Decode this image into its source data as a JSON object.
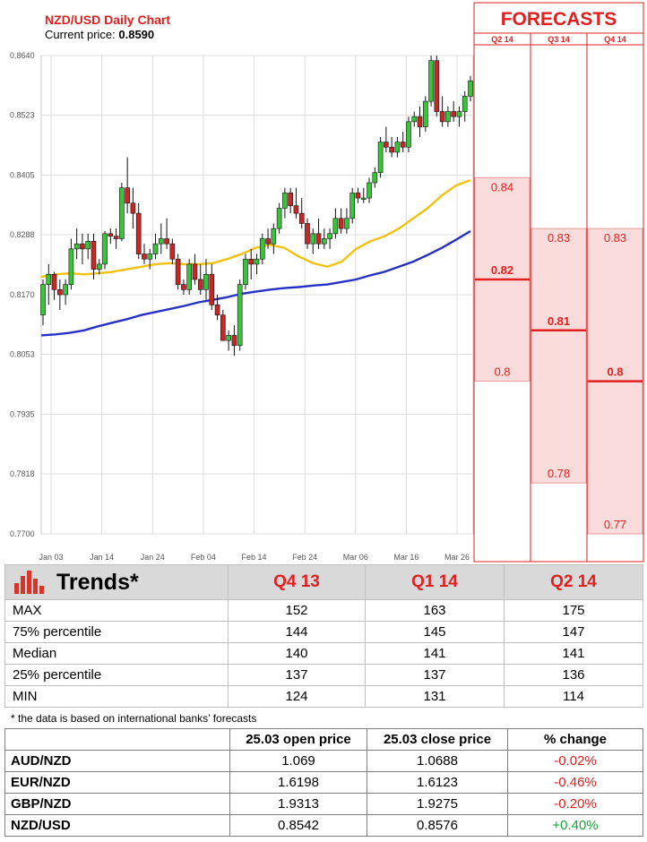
{
  "chart_data": {
    "type": "candlestick",
    "title": "NZD/USD Daily Chart",
    "subtitle_label": "Current price: ",
    "current_price": "0.8590",
    "y_ticks": [
      "0.8640",
      "0.8523",
      "0.8405",
      "0.8288",
      "0.8170",
      "0.8053",
      "0.7935",
      "0.7818",
      "0.7700"
    ],
    "ylim": [
      0.77,
      0.864
    ],
    "x_ticks": [
      "Jan 03",
      "Jan 14",
      "Jan 24",
      "Feb 04",
      "Feb 14",
      "Feb 24",
      "Mar 06",
      "Mar 16",
      "Mar 26"
    ],
    "candles": [
      [
        0.813,
        0.82,
        0.811,
        0.819
      ],
      [
        0.819,
        0.823,
        0.815,
        0.821
      ],
      [
        0.821,
        0.8215,
        0.816,
        0.818
      ],
      [
        0.818,
        0.82,
        0.814,
        0.817
      ],
      [
        0.817,
        0.82,
        0.815,
        0.819
      ],
      [
        0.819,
        0.828,
        0.818,
        0.826
      ],
      [
        0.826,
        0.83,
        0.824,
        0.827
      ],
      [
        0.827,
        0.829,
        0.823,
        0.826
      ],
      [
        0.826,
        0.829,
        0.824,
        0.8275
      ],
      [
        0.8275,
        0.829,
        0.82,
        0.822
      ],
      [
        0.822,
        0.824,
        0.821,
        0.823
      ],
      [
        0.823,
        0.8295,
        0.822,
        0.829
      ],
      [
        0.829,
        0.83,
        0.827,
        0.8285
      ],
      [
        0.8285,
        0.83,
        0.826,
        0.828
      ],
      [
        0.828,
        0.839,
        0.8275,
        0.838
      ],
      [
        0.838,
        0.844,
        0.833,
        0.835
      ],
      [
        0.835,
        0.838,
        0.83,
        0.833
      ],
      [
        0.833,
        0.835,
        0.824,
        0.825
      ],
      [
        0.825,
        0.827,
        0.823,
        0.824
      ],
      [
        0.824,
        0.826,
        0.822,
        0.825
      ],
      [
        0.825,
        0.829,
        0.824,
        0.827
      ],
      [
        0.827,
        0.831,
        0.825,
        0.828
      ],
      [
        0.828,
        0.832,
        0.826,
        0.827
      ],
      [
        0.827,
        0.828,
        0.823,
        0.824
      ],
      [
        0.824,
        0.825,
        0.818,
        0.819
      ],
      [
        0.819,
        0.82,
        0.817,
        0.818
      ],
      [
        0.818,
        0.824,
        0.817,
        0.823
      ],
      [
        0.823,
        0.825,
        0.819,
        0.82
      ],
      [
        0.82,
        0.823,
        0.817,
        0.818
      ],
      [
        0.818,
        0.824,
        0.816,
        0.821
      ],
      [
        0.821,
        0.823,
        0.814,
        0.815
      ],
      [
        0.815,
        0.817,
        0.812,
        0.813
      ],
      [
        0.813,
        0.814,
        0.808,
        0.808
      ],
      [
        0.808,
        0.81,
        0.806,
        0.809
      ],
      [
        0.809,
        0.811,
        0.805,
        0.807
      ],
      [
        0.807,
        0.82,
        0.806,
        0.819
      ],
      [
        0.819,
        0.825,
        0.818,
        0.824
      ],
      [
        0.824,
        0.826,
        0.82,
        0.823
      ],
      [
        0.823,
        0.825,
        0.821,
        0.824
      ],
      [
        0.824,
        0.829,
        0.823,
        0.828
      ],
      [
        0.828,
        0.83,
        0.826,
        0.827
      ],
      [
        0.827,
        0.831,
        0.825,
        0.83
      ],
      [
        0.83,
        0.835,
        0.829,
        0.834
      ],
      [
        0.834,
        0.838,
        0.832,
        0.837
      ],
      [
        0.837,
        0.838,
        0.833,
        0.8345
      ],
      [
        0.8345,
        0.838,
        0.832,
        0.833
      ],
      [
        0.833,
        0.836,
        0.83,
        0.831
      ],
      [
        0.831,
        0.832,
        0.826,
        0.827
      ],
      [
        0.827,
        0.83,
        0.825,
        0.829
      ],
      [
        0.829,
        0.832,
        0.826,
        0.827
      ],
      [
        0.827,
        0.83,
        0.826,
        0.828
      ],
      [
        0.828,
        0.83,
        0.826,
        0.829
      ],
      [
        0.829,
        0.834,
        0.828,
        0.832
      ],
      [
        0.832,
        0.834,
        0.829,
        0.83
      ],
      [
        0.83,
        0.834,
        0.829,
        0.832
      ],
      [
        0.832,
        0.838,
        0.831,
        0.837
      ],
      [
        0.837,
        0.838,
        0.835,
        0.836
      ],
      [
        0.836,
        0.838,
        0.835,
        0.836
      ],
      [
        0.836,
        0.84,
        0.835,
        0.839
      ],
      [
        0.839,
        0.842,
        0.838,
        0.841
      ],
      [
        0.841,
        0.848,
        0.84,
        0.847
      ],
      [
        0.847,
        0.85,
        0.845,
        0.846
      ],
      [
        0.846,
        0.848,
        0.844,
        0.845
      ],
      [
        0.845,
        0.848,
        0.844,
        0.847
      ],
      [
        0.847,
        0.849,
        0.845,
        0.846
      ],
      [
        0.846,
        0.852,
        0.845,
        0.851
      ],
      [
        0.851,
        0.853,
        0.85,
        0.852
      ],
      [
        0.852,
        0.854,
        0.848,
        0.85
      ],
      [
        0.85,
        0.856,
        0.849,
        0.855
      ],
      [
        0.855,
        0.864,
        0.854,
        0.863
      ],
      [
        0.863,
        0.864,
        0.852,
        0.853
      ],
      [
        0.853,
        0.856,
        0.85,
        0.851
      ],
      [
        0.851,
        0.854,
        0.85,
        0.853
      ],
      [
        0.853,
        0.855,
        0.851,
        0.852
      ],
      [
        0.852,
        0.854,
        0.85,
        0.853
      ],
      [
        0.853,
        0.857,
        0.851,
        0.856
      ],
      [
        0.856,
        0.86,
        0.855,
        0.859
      ]
    ],
    "ma_short": [
      0.8205,
      0.821,
      0.8212,
      0.821,
      0.8212,
      0.8215,
      0.822,
      0.8225,
      0.823,
      0.8232,
      0.823,
      0.823,
      0.8232,
      0.824,
      0.825,
      0.8262,
      0.8268,
      0.8262,
      0.8245,
      0.8232,
      0.8225,
      0.8235,
      0.826,
      0.8275,
      0.8285,
      0.83,
      0.832,
      0.834,
      0.8365,
      0.8385,
      0.8395
    ],
    "ma_long": [
      0.809,
      0.8092,
      0.8095,
      0.81,
      0.8108,
      0.8115,
      0.8122,
      0.813,
      0.8136,
      0.8142,
      0.8148,
      0.8155,
      0.816,
      0.8165,
      0.8172,
      0.8176,
      0.818,
      0.8183,
      0.8185,
      0.8188,
      0.819,
      0.8195,
      0.82,
      0.8208,
      0.8215,
      0.8225,
      0.8235,
      0.8248,
      0.8262,
      0.8278,
      0.8295
    ],
    "forecast_panel": {
      "title": "FORECASTS",
      "columns": [
        {
          "label": "Q2 14",
          "high": 0.84,
          "median": 0.82,
          "low": 0.8,
          "high_label": "0.84",
          "median_label": "0.82",
          "low_label": "0.8"
        },
        {
          "label": "Q3 14",
          "high": 0.83,
          "median": 0.81,
          "low": 0.78,
          "high_label": "0.83",
          "median_label": "0.81",
          "low_label": "0.78"
        },
        {
          "label": "Q4 14",
          "high": 0.83,
          "median": 0.8,
          "low": 0.77,
          "high_label": "0.83",
          "median_label": "0.8",
          "low_label": "0.77"
        }
      ]
    }
  },
  "trends": {
    "title": "Trends*",
    "columns": [
      "Q4 13",
      "Q1 14",
      "Q2 14"
    ],
    "rows": [
      {
        "label": "MAX",
        "values": [
          "152",
          "163",
          "175"
        ]
      },
      {
        "label": "75% percentile",
        "values": [
          "144",
          "145",
          "147"
        ]
      },
      {
        "label": "Median",
        "values": [
          "140",
          "141",
          "141"
        ]
      },
      {
        "label": "25% percentile",
        "values": [
          "137",
          "137",
          "136"
        ]
      },
      {
        "label": "MIN",
        "values": [
          "124",
          "131",
          "114"
        ]
      }
    ],
    "footnote": "* the data is based on international banks’ forecasts"
  },
  "fx": {
    "headers": [
      "",
      "25.03 open price",
      "25.03 close price",
      "% change"
    ],
    "rows": [
      {
        "pair": "AUD/NZD",
        "open": "1.069",
        "close": "1.0688",
        "change": "-0.02%",
        "dir": "neg"
      },
      {
        "pair": "EUR/NZD",
        "open": "1.6198",
        "close": "1.6123",
        "change": "-0.46%",
        "dir": "neg"
      },
      {
        "pair": "GBP/NZD",
        "open": "1.9313",
        "close": "1.9275",
        "change": "-0.20%",
        "dir": "neg"
      },
      {
        "pair": "NZD/USD",
        "open": "0.8542",
        "close": "0.8576",
        "change": "+0.40%",
        "dir": "pos"
      }
    ]
  },
  "colors": {
    "title_red": "#e01f1f",
    "candle_up": "#39c53a",
    "candle_down": "#c62828",
    "ma_short": "#f2c20f",
    "ma_long": "#2631c4",
    "forecast_band": "#fbdcdc",
    "forecast_line": "#e01f1f"
  }
}
